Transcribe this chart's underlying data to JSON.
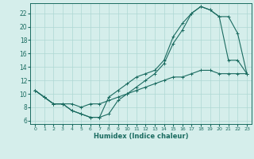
{
  "xlabel": "Humidex (Indice chaleur)",
  "xlim": [
    -0.5,
    23.5
  ],
  "ylim": [
    5.5,
    23.5
  ],
  "xticks": [
    0,
    1,
    2,
    3,
    4,
    5,
    6,
    7,
    8,
    9,
    10,
    11,
    12,
    13,
    14,
    15,
    16,
    17,
    18,
    19,
    20,
    21,
    22,
    23
  ],
  "yticks": [
    6,
    8,
    10,
    12,
    14,
    16,
    18,
    20,
    22
  ],
  "bg_color": "#d5eeeb",
  "line_color": "#1a6b60",
  "grid_color": "#aed8d3",
  "line1_x": [
    0,
    1,
    2,
    3,
    4,
    5,
    6,
    7,
    8,
    9,
    10,
    11,
    12,
    13,
    14,
    15,
    16,
    17,
    18,
    19,
    20,
    21,
    22,
    23
  ],
  "line1_y": [
    10.5,
    9.5,
    8.5,
    8.5,
    7.5,
    7.0,
    6.5,
    6.5,
    9.5,
    10.5,
    11.5,
    12.5,
    13.0,
    13.5,
    15.0,
    18.5,
    20.5,
    22.0,
    23.0,
    22.5,
    21.5,
    15.0,
    15.0,
    13.0
  ],
  "line2_x": [
    0,
    1,
    2,
    3,
    4,
    5,
    6,
    7,
    8,
    9,
    10,
    11,
    12,
    13,
    14,
    15,
    16,
    17,
    18,
    19,
    20,
    21,
    22,
    23
  ],
  "line2_y": [
    10.5,
    9.5,
    8.5,
    8.5,
    7.5,
    7.0,
    6.5,
    6.5,
    7.0,
    9.0,
    10.0,
    11.0,
    12.0,
    13.0,
    14.5,
    17.5,
    19.5,
    22.0,
    23.0,
    22.5,
    21.5,
    21.5,
    19.0,
    13.0
  ],
  "line3_x": [
    0,
    1,
    2,
    3,
    4,
    5,
    6,
    7,
    8,
    9,
    10,
    11,
    12,
    13,
    14,
    15,
    16,
    17,
    18,
    19,
    20,
    21,
    22,
    23
  ],
  "line3_y": [
    10.5,
    9.5,
    8.5,
    8.5,
    8.5,
    8.0,
    8.5,
    8.5,
    9.0,
    9.5,
    10.0,
    10.5,
    11.0,
    11.5,
    12.0,
    12.5,
    12.5,
    13.0,
    13.5,
    13.5,
    13.0,
    13.0,
    13.0,
    13.0
  ]
}
